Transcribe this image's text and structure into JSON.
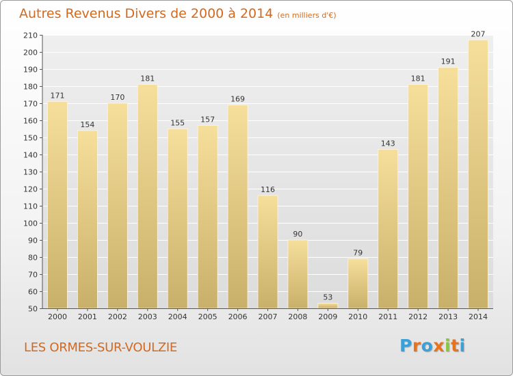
{
  "header": {
    "title": "Autres Revenus Divers de 2000 à 2014",
    "subtitle": "(en milliers d'€)"
  },
  "footer": {
    "place": "LES ORMES-SUR-VOULZIE",
    "logo": [
      "P",
      "r",
      "o",
      "x",
      "i",
      "t",
      "i"
    ],
    "logo_colors": [
      "#3aa0d8",
      "#e8731c",
      "#3aa0d8",
      "#e8731c",
      "#8cc63f",
      "#e8731c",
      "#3aa0d8"
    ]
  },
  "chart_data": {
    "type": "bar",
    "title": "Autres Revenus Divers de 2000 à 2014",
    "subtitle": "(en milliers d'€)",
    "categories": [
      "2000",
      "2001",
      "2002",
      "2003",
      "2004",
      "2005",
      "2006",
      "2007",
      "2008",
      "2009",
      "2010",
      "2011",
      "2012",
      "2013",
      "2014"
    ],
    "values": [
      171,
      154,
      170,
      181,
      155,
      157,
      169,
      116,
      90,
      53,
      79,
      143,
      181,
      191,
      207
    ],
    "ylim": [
      50,
      210
    ],
    "yticks": [
      50,
      60,
      70,
      80,
      90,
      100,
      110,
      120,
      130,
      140,
      150,
      160,
      170,
      180,
      190,
      200,
      210
    ],
    "grid": true,
    "data_labels": true,
    "colors": {
      "bar_top": "#f6df9b",
      "bar_bottom": "#c9b06a",
      "grid": "#ffffff",
      "plot_bg": "#e6e6e6"
    }
  }
}
